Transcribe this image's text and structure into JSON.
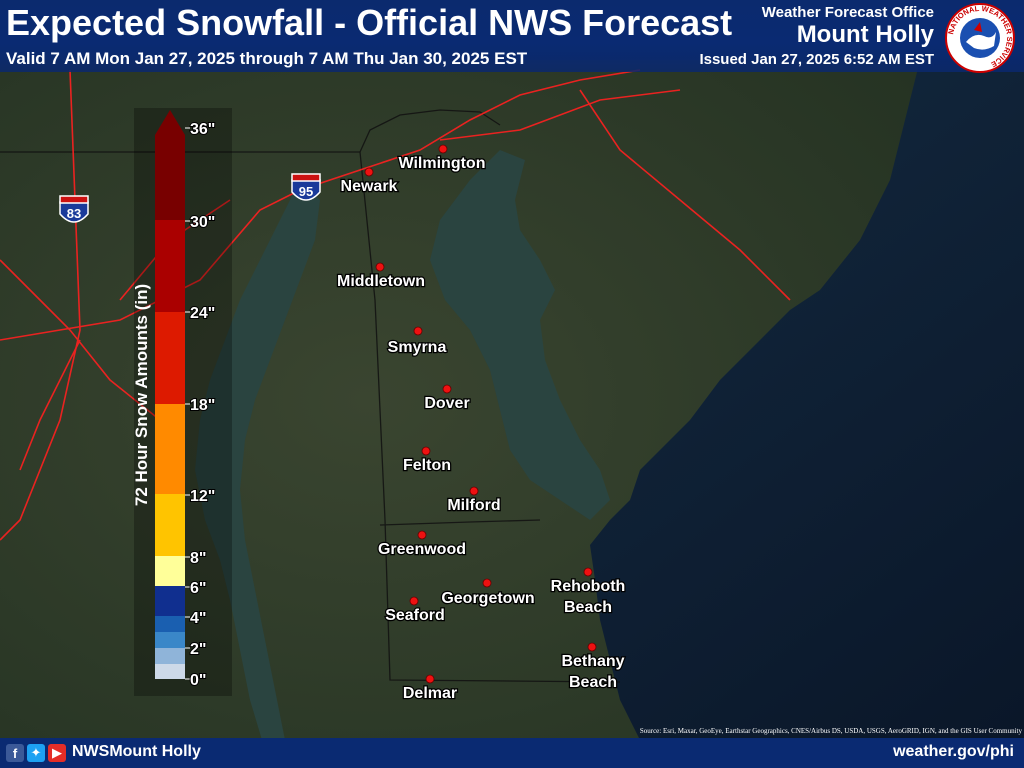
{
  "header": {
    "title": "Expected Snowfall - Official NWS Forecast",
    "valid": "Valid 7 AM Mon Jan 27, 2025 through 7 AM Thu Jan 30, 2025 EST",
    "office_label": "Weather Forecast Office",
    "office_name": "Mount Holly",
    "issued": "Issued Jan 27, 2025 6:52 AM EST",
    "logo_text": "NATIONAL WEATHER SERVICE"
  },
  "legend": {
    "title": "72 Hour Snow Amounts (in)",
    "bins": [
      {
        "label": "0\"",
        "color": "#cdd9e8"
      },
      {
        "label": "2\"",
        "color": "#8fb4d9"
      },
      {
        "label": "",
        "color": "#3a87c8"
      },
      {
        "label": "4\"",
        "color": "#1a5fb0"
      },
      {
        "label": "6\"",
        "color": "#102f8f"
      },
      {
        "label": "8\"",
        "color": "#ffff99"
      },
      {
        "label": "12\"",
        "color": "#ffc400"
      },
      {
        "label": "18\"",
        "color": "#ff8a00"
      },
      {
        "label": "24\"",
        "color": "#dd1a00"
      },
      {
        "label": "30\"",
        "color": "#aa0000"
      },
      {
        "label": "36\"",
        "color": "#780000"
      }
    ]
  },
  "cities": [
    {
      "name": "Wilmington"
    },
    {
      "name": "Newark"
    },
    {
      "name": "Middletown"
    },
    {
      "name": "Smyrna"
    },
    {
      "name": "Dover"
    },
    {
      "name": "Felton"
    },
    {
      "name": "Milford"
    },
    {
      "name": "Greenwood"
    },
    {
      "name": "Georgetown"
    },
    {
      "name": "Seaford"
    },
    {
      "name": "Rehoboth Beach"
    },
    {
      "name": "Bethany Beach"
    },
    {
      "name": "Delmar"
    }
  ],
  "highways": [
    {
      "label": "83"
    },
    {
      "label": "95"
    }
  ],
  "footer": {
    "handle": "NWSMount Holly",
    "site": "weather.gov/phi",
    "source": "Source: Esri, Maxar, GeoEye, Earthstar Geographics, CNES/Airbus DS, USDA, USGS, AeroGRID, IGN, and the GIS User Community"
  },
  "colors": {
    "header_bg": "#0a2a72",
    "land": "#2d3a2a",
    "water": "#25403f",
    "ocean": "#0e1e33",
    "roads": "#ff2020",
    "city_dot": "#ee1111"
  },
  "icons": [
    "facebook-icon",
    "twitter-icon",
    "youtube-icon",
    "nws-logo-icon"
  ]
}
